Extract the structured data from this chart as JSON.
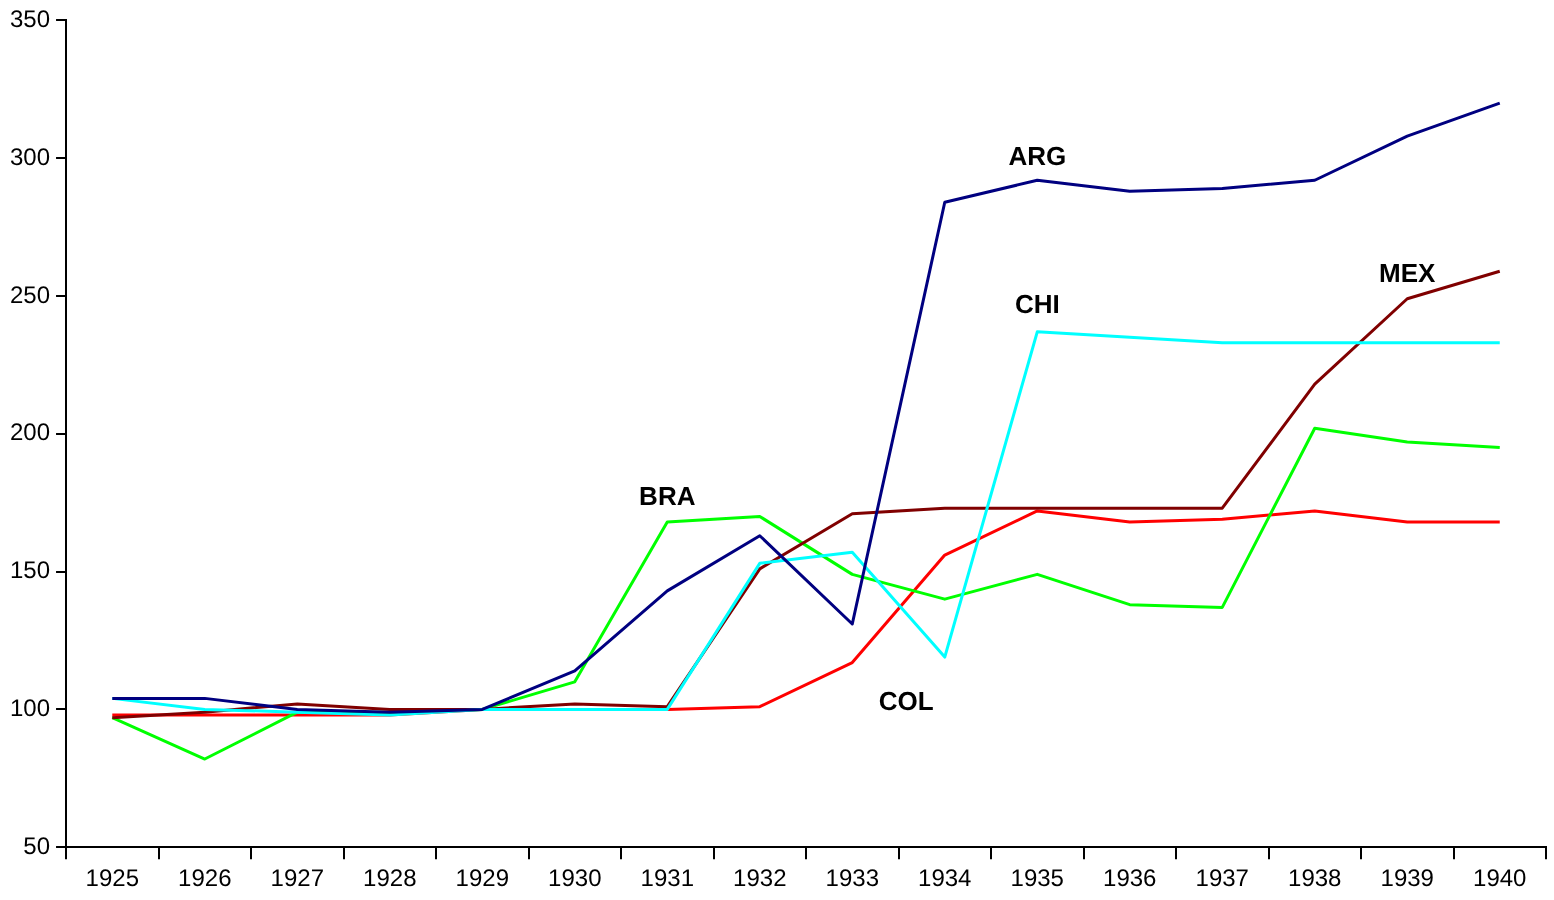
{
  "chart_data": {
    "type": "line",
    "categories": [
      "1925",
      "1926",
      "1927",
      "1928",
      "1929",
      "1930",
      "1931",
      "1932",
      "1933",
      "1934",
      "1935",
      "1936",
      "1937",
      "1938",
      "1939",
      "1940"
    ],
    "series": [
      {
        "color": "#000080",
        "values": [
          104,
          104,
          100,
          99,
          100,
          114,
          143,
          163,
          131,
          284,
          292,
          288,
          289,
          292,
          308,
          320
        ]
      },
      {
        "color": "#00ffff",
        "values": [
          104,
          100,
          99,
          98,
          100,
          100,
          100,
          153,
          157,
          119,
          237,
          235,
          233,
          233,
          233,
          233
        ]
      },
      {
        "color": "#800000",
        "values": [
          97,
          99,
          102,
          100,
          100,
          102,
          101,
          151,
          171,
          173,
          173,
          173,
          173,
          218,
          249,
          259
        ]
      },
      {
        "color": "#00ff00",
        "values": [
          97,
          82,
          99,
          99,
          100,
          110,
          168,
          170,
          149,
          140,
          149,
          138,
          137,
          202,
          197,
          195
        ]
      },
      {
        "color": "#ff0000",
        "values": [
          98,
          98,
          98,
          98,
          100,
          100,
          100,
          101,
          117,
          156,
          172,
          168,
          169,
          172,
          168,
          168
        ]
      }
    ],
    "ylim": [
      50,
      350
    ],
    "yticks": [
      50,
      100,
      150,
      200,
      250,
      300,
      350
    ],
    "grid": false,
    "legend": false,
    "marker": "none",
    "line_style": "solid",
    "annotations": [
      {
        "text": "ARG",
        "x": "1935",
        "y": 292
      },
      {
        "text": "CHI",
        "x": "1935",
        "y": 237
      },
      {
        "text": "MEX",
        "x": "1939",
        "y": 249
      },
      {
        "text": "BRA",
        "x": "1931",
        "y": 168
      },
      {
        "text": "COL",
        "x": "1933",
        "y": 117
      }
    ]
  }
}
